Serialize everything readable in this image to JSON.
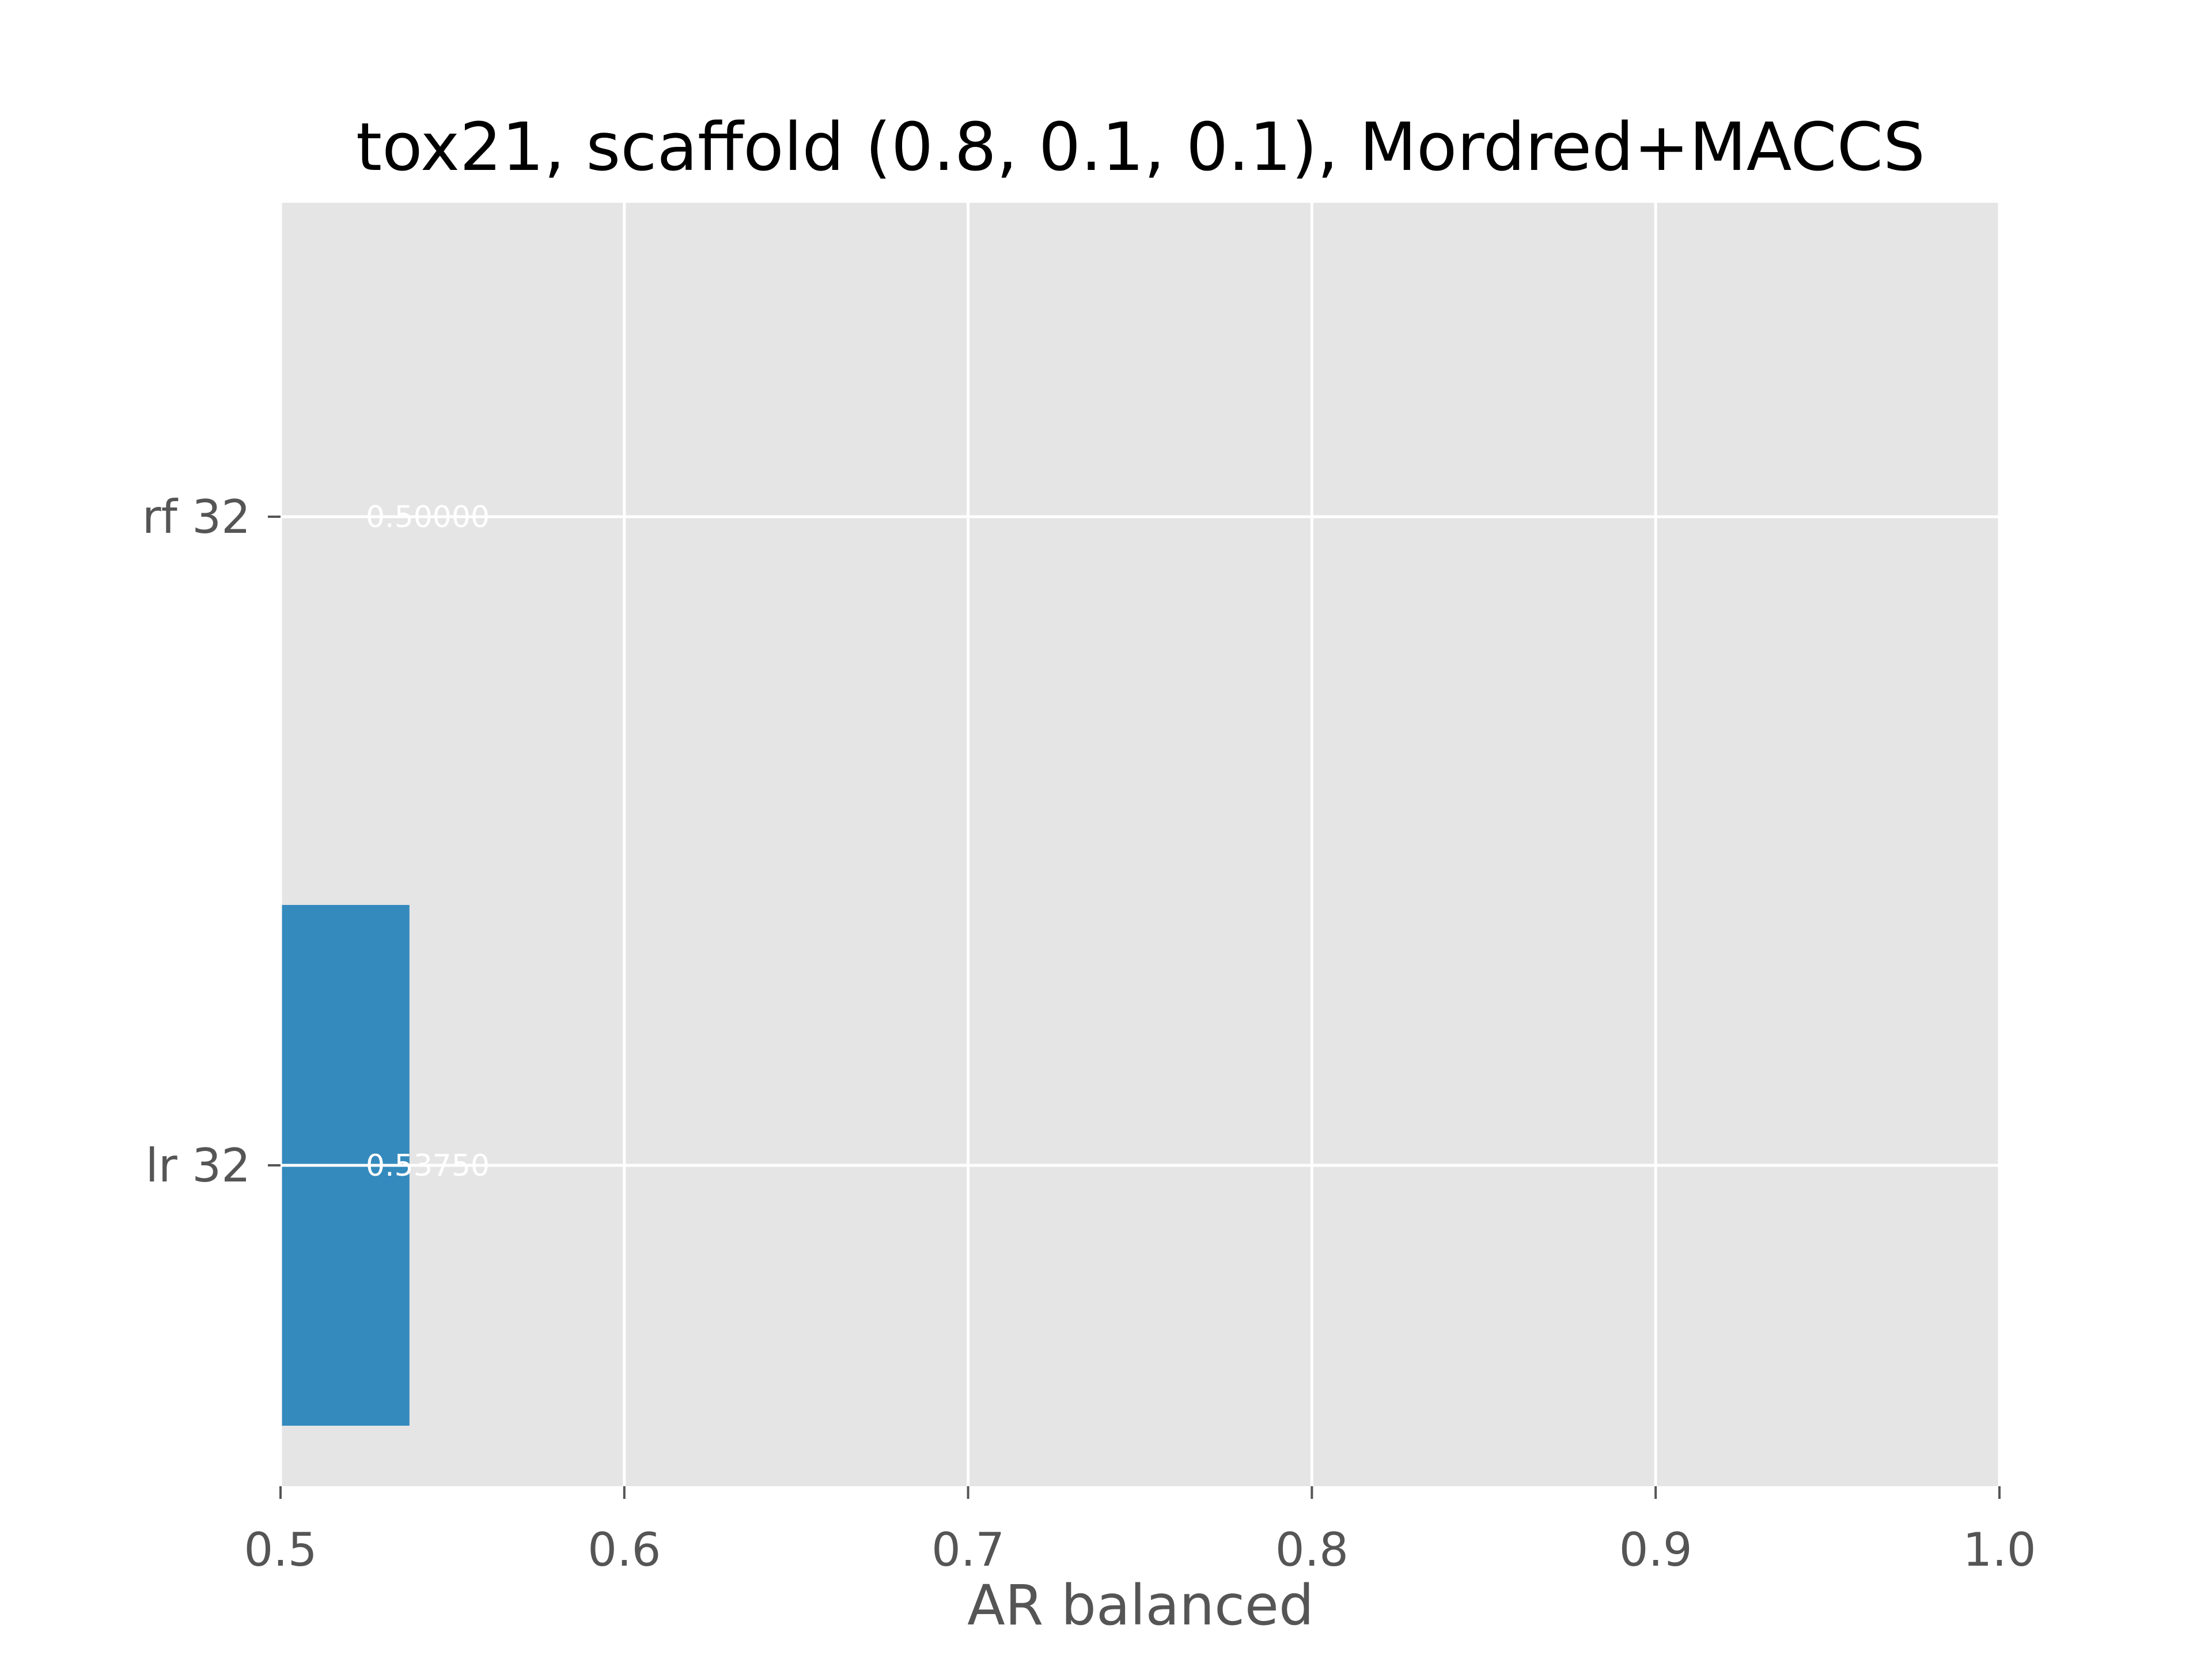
{
  "chart_data": {
    "type": "bar",
    "orientation": "horizontal",
    "title": "tox21, scaffold (0.8, 0.1, 0.1), Mordred+MACCS",
    "xlabel": "AR balanced",
    "ylabel": "",
    "categories": [
      "lr 32",
      "rf 32"
    ],
    "values": [
      0.5375,
      0.5
    ],
    "data_labels": [
      "0.53750",
      "0.50000"
    ],
    "xlim": [
      0.5,
      1.0
    ],
    "xticks": [
      0.5,
      0.6,
      0.7,
      0.8,
      0.9,
      1.0
    ],
    "xtick_labels": [
      "0.5",
      "0.6",
      "0.7",
      "0.8",
      "0.9",
      "1.0"
    ],
    "grid": true,
    "style": "ggplot",
    "bar_color": "#348ABD",
    "background_color": "#E5E5E5",
    "grid_color": "#FFFFFF"
  }
}
